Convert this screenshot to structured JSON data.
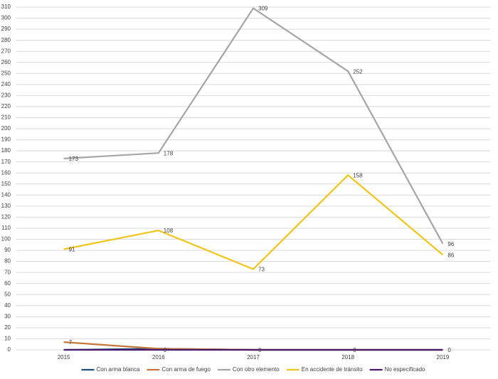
{
  "chart_data": {
    "type": "line",
    "categories": [
      "2015",
      "2016",
      "2017",
      "2018",
      "2019"
    ],
    "series": [
      {
        "name": "Con arma blanca",
        "color": "#1f4e79",
        "values": [
          0,
          1,
          0,
          0,
          0
        ],
        "value_labels": [
          null,
          null,
          null,
          null,
          null
        ]
      },
      {
        "name": "Con arma de fuego",
        "color": "#c5763a",
        "values": [
          7,
          1,
          0,
          0,
          0
        ],
        "value_labels": [
          "7",
          null,
          null,
          null,
          null
        ]
      },
      {
        "name": "Con otro elemento",
        "color": "#a5a5a5",
        "values": [
          173,
          178,
          309,
          252,
          96
        ],
        "value_labels": [
          "173",
          "178",
          "309",
          "252",
          "96"
        ]
      },
      {
        "name": "En accidente de tránsito",
        "color": "#f2c419",
        "values": [
          91,
          108,
          73,
          158,
          86
        ],
        "value_labels": [
          "91",
          "108",
          "73",
          "158",
          "86"
        ]
      },
      {
        "name": "No especificado",
        "color": "#4b1a6e",
        "values": [
          0,
          0,
          0,
          0,
          0
        ],
        "value_labels": [
          null,
          "0",
          "0",
          "0",
          "0"
        ]
      }
    ],
    "ylim": [
      0,
      310
    ],
    "yticks": [
      0,
      10,
      20,
      30,
      40,
      50,
      60,
      70,
      80,
      90,
      100,
      110,
      120,
      130,
      140,
      150,
      160,
      170,
      180,
      190,
      200,
      210,
      220,
      230,
      240,
      250,
      260,
      270,
      280,
      290,
      300,
      310
    ],
    "grid": true,
    "legend": "bottom"
  }
}
